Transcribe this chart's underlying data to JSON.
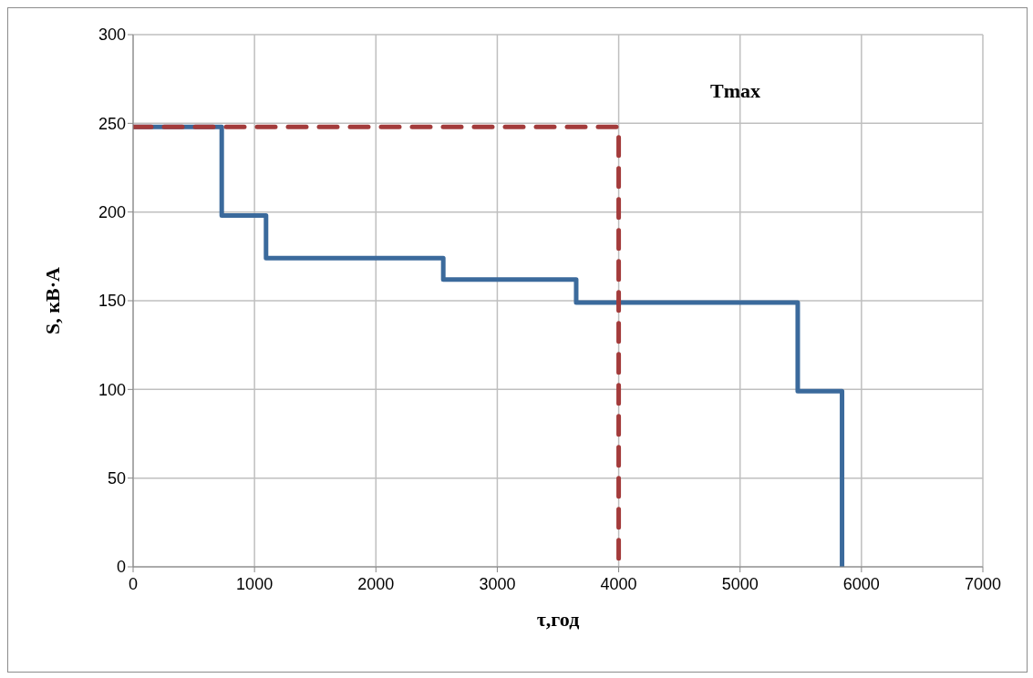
{
  "chart_data": {
    "type": "step",
    "xlabel": "τ,год",
    "ylabel": "S, кВ·А",
    "annotations": [
      "Tmax"
    ],
    "xlim": [
      0,
      7000
    ],
    "xticks": [
      0,
      1000,
      2000,
      3000,
      4000,
      5000,
      6000,
      7000
    ],
    "ylim": [
      0,
      300
    ],
    "yticks": [
      0,
      50,
      100,
      150,
      200,
      250,
      300
    ],
    "grid": true,
    "legend": false,
    "series": [
      {
        "color": "#3b6a9c",
        "line_style": "solid",
        "x": [
          0,
          730,
          1095,
          2555,
          3650,
          5475,
          5840
        ],
        "values": [
          248,
          198,
          174,
          162,
          149,
          99,
          0
        ]
      },
      {
        "color": "#a33b3b",
        "line_style": "dashed",
        "x": [
          0,
          4000
        ],
        "values": [
          248,
          0
        ]
      }
    ]
  }
}
